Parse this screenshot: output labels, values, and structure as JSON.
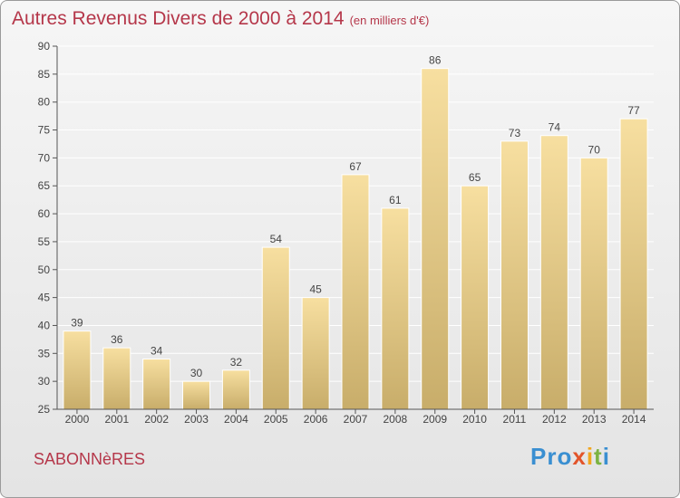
{
  "title": "Autres Revenus Divers de 2000 à 2014",
  "unit": "(en milliers d'€)",
  "commune": "SABONNèRES",
  "logo": {
    "p1": "Pro",
    "p2": "x",
    "p3": "i",
    "p4": "t",
    "p5": "i"
  },
  "colors": {
    "title": "#b5374a",
    "bar_light": "#f7dfa0",
    "bar_dark": "#c8ad6a",
    "grid": "#ffffff"
  },
  "chart_data": {
    "type": "bar",
    "title": "Autres Revenus Divers de 2000 à 2014",
    "subtitle": "(en milliers d'€)",
    "xlabel": "",
    "ylabel": "",
    "categories": [
      "2000",
      "2001",
      "2002",
      "2003",
      "2004",
      "2005",
      "2006",
      "2007",
      "2008",
      "2009",
      "2010",
      "2011",
      "2012",
      "2013",
      "2014"
    ],
    "values": [
      39,
      36,
      34,
      30,
      32,
      54,
      45,
      67,
      61,
      86,
      65,
      73,
      74,
      70,
      77
    ],
    "ylim": [
      25,
      90
    ],
    "yticks": [
      25,
      30,
      35,
      40,
      45,
      50,
      55,
      60,
      65,
      70,
      75,
      80,
      85,
      90
    ],
    "grid": true,
    "legend": "none"
  }
}
